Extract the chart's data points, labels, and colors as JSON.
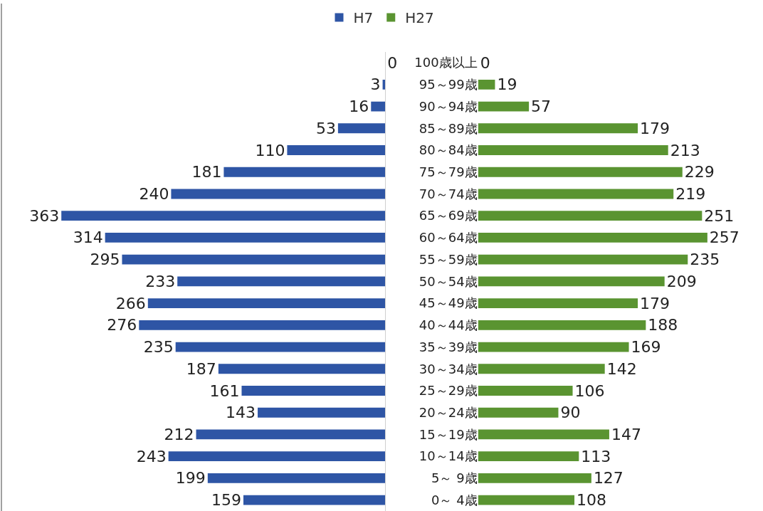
{
  "chart_data": [
    {
      "type": "bar",
      "orientation": "horizontal",
      "categories": [
        "100歳以上",
        "95～99歳",
        "90～94歳",
        "85～89歳",
        "80～84歳",
        "75～79歳",
        "70～74歳",
        "65～69歳",
        "60～64歳",
        "55～59歳",
        "50～54歳",
        "45～49歳",
        "40～44歳",
        "35～39歳",
        "30～34歳",
        "25～29歳",
        "20～24歳",
        "15～19歳",
        "10～14歳",
        "5～ 9歳",
        "0～ 4歳"
      ],
      "series": [
        {
          "name": "H7",
          "color": "#2e55a5",
          "values": [
            0,
            3,
            16,
            53,
            110,
            181,
            240,
            363,
            314,
            295,
            233,
            266,
            276,
            235,
            187,
            161,
            143,
            212,
            243,
            199,
            159
          ]
        }
      ],
      "data_labels": true,
      "tick_labels": false,
      "legend": "top"
    },
    {
      "type": "bar",
      "orientation": "horizontal",
      "categories": [
        "100歳以上",
        "95～99歳",
        "90～94歳",
        "85～89歳",
        "80～84歳",
        "75～79歳",
        "70～74歳",
        "65～69歳",
        "60～64歳",
        "55～59歳",
        "50～54歳",
        "45～49歳",
        "40～44歳",
        "35～39歳",
        "30～34歳",
        "25～29歳",
        "20～24歳",
        "15～19歳",
        "10～14歳",
        "5～ 9歳",
        "0～ 4歳"
      ],
      "series": [
        {
          "name": "H27",
          "color": "#5a9431",
          "values": [
            0,
            19,
            57,
            179,
            213,
            229,
            219,
            251,
            257,
            235,
            209,
            179,
            188,
            169,
            142,
            106,
            90,
            147,
            113,
            127,
            108
          ]
        }
      ],
      "data_labels": true,
      "tick_labels": "y",
      "legend": "top"
    }
  ]
}
